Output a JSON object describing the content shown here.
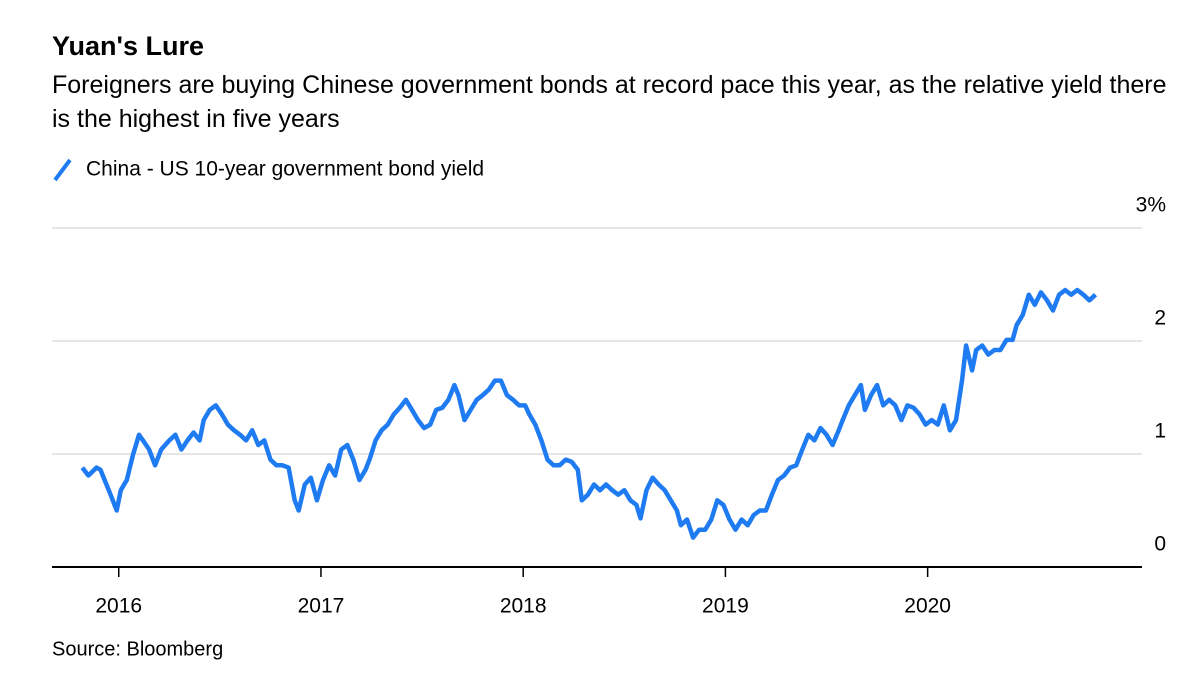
{
  "chart_data": {
    "type": "line",
    "title": "Yuan's Lure",
    "subtitle": "Foreigners are buying Chinese government bonds at record pace this year, as the relative yield there is the highest in five years",
    "source": "Source: Bloomberg",
    "xlim": [
      2015.67,
      2021.06
    ],
    "xticks": [
      2016,
      2017,
      2018,
      2019,
      2020
    ],
    "ylim": [
      0,
      3
    ],
    "yticks": [
      0,
      1,
      2,
      {
        "value": 3,
        "label": "3%"
      }
    ],
    "grid": true,
    "series": [
      {
        "name": "China - US 10-year government bond yield",
        "color": "#1f7bf2",
        "x": [
          2015.82,
          2015.85,
          2015.89,
          2015.91,
          2015.93,
          2015.96,
          2015.99,
          2016.01,
          2016.04,
          2016.07,
          2016.1,
          2016.12,
          2016.15,
          2016.18,
          2016.21,
          2016.25,
          2016.28,
          2016.31,
          2016.34,
          2016.37,
          2016.4,
          2016.42,
          2016.45,
          2016.48,
          2016.51,
          2016.54,
          2016.57,
          2016.6,
          2016.63,
          2016.66,
          2016.69,
          2016.72,
          2016.75,
          2016.78,
          2016.81,
          2016.84,
          2016.87,
          2016.89,
          2016.92,
          2016.95,
          2016.98,
          2017.01,
          2017.04,
          2017.07,
          2017.1,
          2017.13,
          2017.16,
          2017.19,
          2017.22,
          2017.24,
          2017.27,
          2017.3,
          2017.33,
          2017.36,
          2017.39,
          2017.42,
          2017.45,
          2017.48,
          2017.51,
          2017.54,
          2017.57,
          2017.6,
          2017.63,
          2017.66,
          2017.68,
          2017.71,
          2017.74,
          2017.77,
          2017.8,
          2017.83,
          2017.86,
          2017.89,
          2017.92,
          2017.95,
          2017.98,
          2018.01,
          2018.03,
          2018.06,
          2018.09,
          2018.12,
          2018.15,
          2018.18,
          2018.21,
          2018.24,
          2018.27,
          2018.29,
          2018.32,
          2018.35,
          2018.38,
          2018.41,
          2018.44,
          2018.47,
          2018.5,
          2018.53,
          2018.56,
          2018.58,
          2018.61,
          2018.64,
          2018.67,
          2018.7,
          2018.73,
          2018.76,
          2018.78,
          2018.81,
          2018.84,
          2018.87,
          2018.9,
          2018.93,
          2018.96,
          2018.99,
          2019.02,
          2019.05,
          2019.08,
          2019.11,
          2019.14,
          2019.17,
          2019.2,
          2019.23,
          2019.26,
          2019.29,
          2019.32,
          2019.35,
          2019.38,
          2019.41,
          2019.44,
          2019.47,
          2019.5,
          2019.53,
          2019.56,
          2019.58,
          2019.61,
          2019.64,
          2019.67,
          2019.69,
          2019.72,
          2019.75,
          2019.78,
          2019.81,
          2019.84,
          2019.87,
          2019.9,
          2019.93,
          2019.96,
          2019.99,
          2020.02,
          2020.05,
          2020.08,
          2020.11,
          2020.14,
          2020.17,
          2020.19,
          2020.22,
          2020.24,
          2020.27,
          2020.3,
          2020.33,
          2020.36,
          2020.39,
          2020.42,
          2020.44,
          2020.47,
          2020.5,
          2020.53,
          2020.56,
          2020.59,
          2020.62,
          2020.65,
          2020.68,
          2020.71,
          2020.74,
          2020.77,
          2020.8,
          2020.83
        ],
        "values": [
          0.88,
          0.81,
          0.88,
          0.86,
          0.77,
          0.64,
          0.5,
          0.68,
          0.77,
          0.99,
          1.17,
          1.12,
          1.04,
          0.9,
          1.04,
          1.12,
          1.17,
          1.04,
          1.12,
          1.19,
          1.12,
          1.3,
          1.39,
          1.43,
          1.35,
          1.26,
          1.21,
          1.17,
          1.12,
          1.21,
          1.08,
          1.12,
          0.95,
          0.9,
          0.9,
          0.88,
          0.59,
          0.5,
          0.73,
          0.79,
          0.59,
          0.77,
          0.9,
          0.81,
          1.04,
          1.08,
          0.95,
          0.77,
          0.86,
          0.95,
          1.12,
          1.21,
          1.26,
          1.35,
          1.41,
          1.48,
          1.39,
          1.3,
          1.23,
          1.26,
          1.39,
          1.41,
          1.48,
          1.61,
          1.52,
          1.3,
          1.39,
          1.48,
          1.52,
          1.57,
          1.65,
          1.65,
          1.52,
          1.48,
          1.43,
          1.43,
          1.35,
          1.26,
          1.12,
          0.95,
          0.9,
          0.9,
          0.95,
          0.93,
          0.86,
          0.59,
          0.64,
          0.73,
          0.68,
          0.73,
          0.68,
          0.64,
          0.68,
          0.59,
          0.55,
          0.43,
          0.68,
          0.79,
          0.73,
          0.68,
          0.59,
          0.5,
          0.37,
          0.42,
          0.26,
          0.33,
          0.33,
          0.42,
          0.59,
          0.55,
          0.42,
          0.33,
          0.42,
          0.37,
          0.46,
          0.5,
          0.5,
          0.64,
          0.77,
          0.81,
          0.88,
          0.9,
          1.04,
          1.17,
          1.12,
          1.23,
          1.17,
          1.08,
          1.21,
          1.3,
          1.43,
          1.52,
          1.61,
          1.39,
          1.52,
          1.61,
          1.43,
          1.48,
          1.43,
          1.3,
          1.43,
          1.41,
          1.35,
          1.26,
          1.3,
          1.26,
          1.43,
          1.21,
          1.3,
          1.65,
          1.96,
          1.74,
          1.92,
          1.96,
          1.88,
          1.92,
          1.92,
          2.01,
          2.01,
          2.14,
          2.23,
          2.41,
          2.32,
          2.43,
          2.36,
          2.27,
          2.41,
          2.45,
          2.41,
          2.45,
          2.41,
          2.36,
          2.41
        ]
      }
    ]
  }
}
